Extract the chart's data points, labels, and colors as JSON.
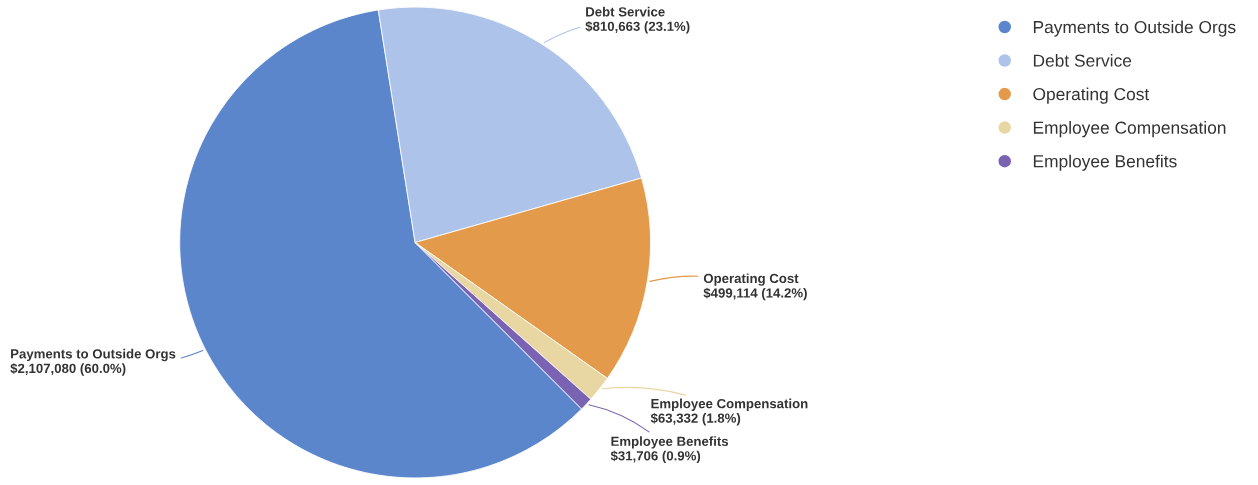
{
  "chart_data": {
    "type": "pie",
    "categories": [
      "Payments to Outside Orgs",
      "Debt Service",
      "Operating Cost",
      "Employee Compensation",
      "Employee Benefits"
    ],
    "values": [
      2107080,
      810663,
      499114,
      63332,
      31706
    ],
    "value_labels": [
      "$2,107,080 (60.0%)",
      "$810,663 (23.1%)",
      "$499,114 (14.2%)",
      "$63,332 (1.8%)",
      "$31,706 (0.9%)"
    ],
    "colors": [
      "#5b86cc",
      "#adc3ea",
      "#e39a4a",
      "#e8d7a2",
      "#7b63b3"
    ],
    "legend": "top right"
  }
}
